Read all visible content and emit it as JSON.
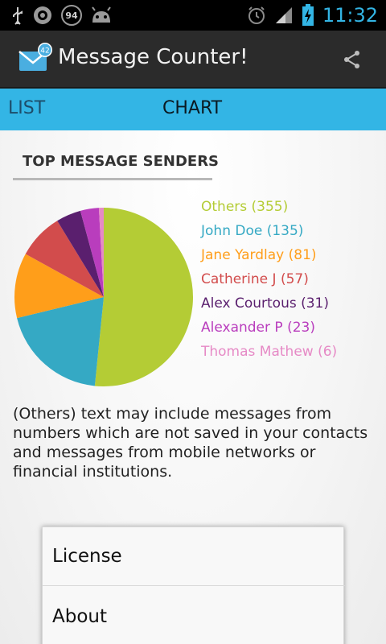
{
  "status_bar": {
    "time": "11:32",
    "battery_badge": "94",
    "icons": [
      "usb-icon",
      "sync-icon",
      "battery-badge-icon",
      "android-icon",
      "alarm-icon",
      "signal-icon",
      "battery-icon"
    ]
  },
  "action_bar": {
    "title": "Message Counter!",
    "app_icon_badge": "42",
    "share_icon": "share-icon"
  },
  "tabs": [
    {
      "label": "LIST",
      "selected": false
    },
    {
      "label": "CHART",
      "selected": true
    }
  ],
  "section_title": "TOP MESSAGE SENDERS",
  "chart_data": {
    "type": "pie",
    "title": "TOP MESSAGE SENDERS",
    "categories": [
      "Others",
      "John Doe",
      "Jane Yardlay",
      "Catherine J",
      "Alex Courtous",
      "Alexander P",
      "Thomas Mathew"
    ],
    "values": [
      355,
      135,
      81,
      57,
      31,
      23,
      6
    ],
    "colors": [
      "#b4cc35",
      "#35a9c4",
      "#ff9e1a",
      "#d24c4c",
      "#5a1f6e",
      "#b93dbd",
      "#e68ac6"
    ],
    "legend": [
      {
        "label": "Others (355)",
        "color": "#b4cc35"
      },
      {
        "label": "John Doe (135)",
        "color": "#35a9c4"
      },
      {
        "label": "Jane Yardlay (81)",
        "color": "#ff9e1a"
      },
      {
        "label": "Catherine J (57)",
        "color": "#d24c4c"
      },
      {
        "label": "Alex Courtous (31)",
        "color": "#5a1f6e"
      },
      {
        "label": "Alexander P (23)",
        "color": "#b93dbd"
      },
      {
        "label": "Thomas Mathew (6)",
        "color": "#e68ac6"
      }
    ],
    "legend_placement": "right"
  },
  "note": "(Others) text may include messages from numbers which are not saved in your contacts and messages from mobile networks or financial institutions.",
  "menu": {
    "items": [
      {
        "label": "License"
      },
      {
        "label": "About"
      }
    ]
  },
  "colors": {
    "accent": "#33b5e5",
    "action_bar": "#2b2b2b",
    "status_bar": "#000000"
  }
}
